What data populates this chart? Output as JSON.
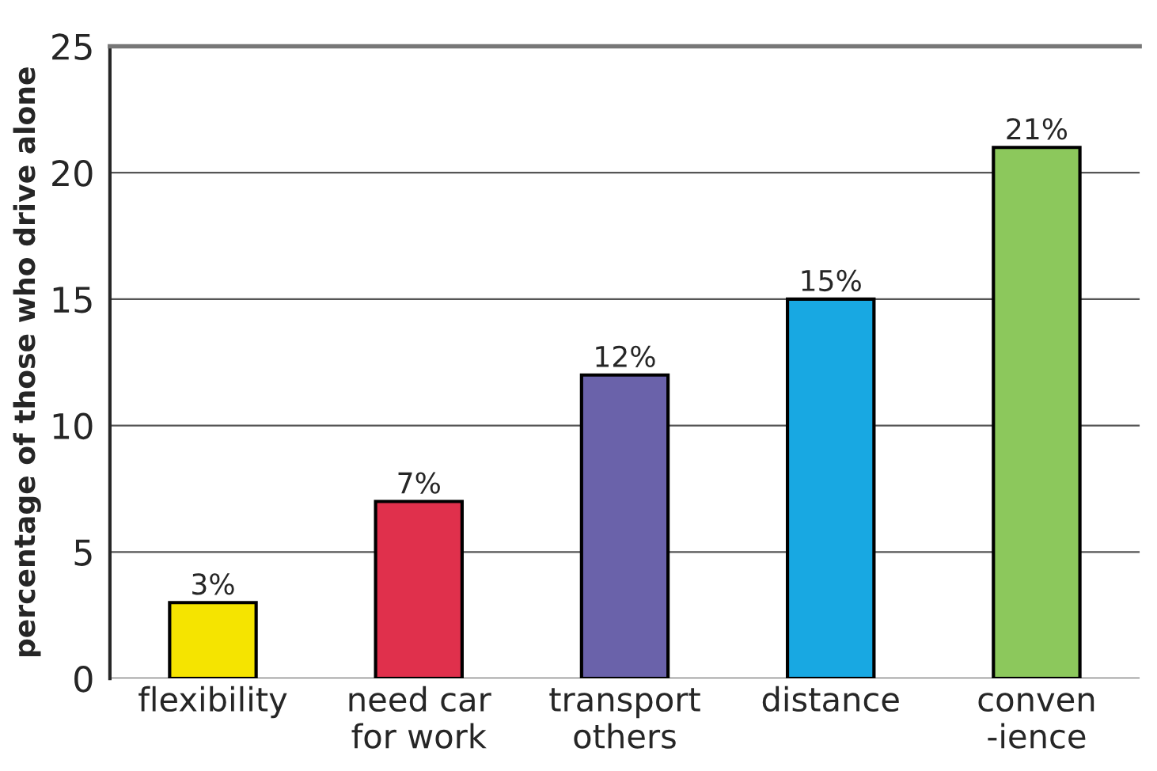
{
  "chart_data": {
    "type": "bar",
    "ylabel": "percentage of those who drive alone",
    "categories": [
      "flexibility",
      "need car\nfor work",
      "transport\nothers",
      "distance",
      "conven\n-ience"
    ],
    "values": [
      3,
      7,
      12,
      15,
      21
    ],
    "value_labels": [
      "3%",
      "7%",
      "12%",
      "15%",
      "21%"
    ],
    "colors": [
      "#f5e400",
      "#e0304c",
      "#6a62aa",
      "#18a8e2",
      "#8cc85c"
    ],
    "ylim": [
      0,
      25
    ],
    "yticks": [
      0,
      5,
      10,
      15,
      20,
      25
    ],
    "grid": "y"
  }
}
